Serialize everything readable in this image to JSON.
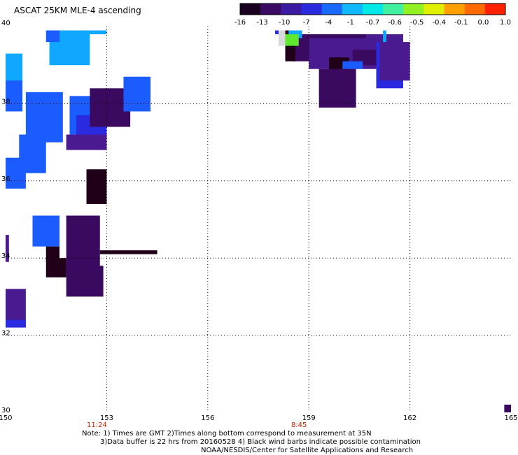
{
  "title": "ASCAT 25KM MLE-4 ascending",
  "colorbar": {
    "labels": [
      "-16",
      "-13",
      "-10",
      "-7",
      "-4",
      "-1",
      "-0.7",
      "-0.6",
      "-0.5",
      "-0.4",
      "-0.1",
      "0.0",
      "1.0"
    ],
    "colors": [
      "#1a0020",
      "#3b0a63",
      "#3a1aa0",
      "#2a2ae0",
      "#1a6aff",
      "#10b8ff",
      "#00e8e8",
      "#40f0a0",
      "#90f020",
      "#e0f000",
      "#ffa000",
      "#ff6a00",
      "#ff2000"
    ]
  },
  "map": {
    "lat_labels": [
      "40",
      "38",
      "36",
      "34",
      "32",
      "30"
    ],
    "lon_labels": [
      "150",
      "153",
      "156",
      "159",
      "162",
      "165"
    ],
    "time_labels": [
      {
        "lon": 153,
        "text": "11:24"
      },
      {
        "lon": 159,
        "text": "8:45"
      }
    ]
  },
  "notes": {
    "line1": "Note: 1) Times are GMT 2)Times along bottom correspond to measurement at 35N",
    "line2": "3)Data buffer is 22 hrs from 20160528 4) Black wind barbs indicate possible contamination",
    "line3": "NOAA/NESDIS/Center for Satellite Applications and Research"
  }
}
